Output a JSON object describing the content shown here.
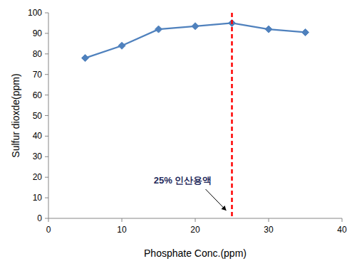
{
  "chart_data": {
    "type": "line",
    "x_label": "Phosphate Conc.(ppm)",
    "y_label": "Sulfur dioxde(ppm)",
    "x": [
      5,
      10,
      15,
      20,
      25,
      30,
      35
    ],
    "values": [
      78,
      84,
      92,
      93.5,
      95,
      92,
      90.5
    ],
    "color": "#4f81bd",
    "marker": "diamond",
    "xlim": [
      0,
      40
    ],
    "xticks": [
      0,
      10,
      20,
      30,
      40
    ],
    "ylim": [
      0,
      100
    ],
    "yticks": [
      0,
      10,
      20,
      30,
      40,
      50,
      60,
      70,
      80,
      90,
      100
    ],
    "grid": false,
    "annotations": [
      {
        "text": "25% 인산용액",
        "x": 25,
        "color": "#ff0000",
        "line_style": "dashed"
      }
    ]
  }
}
